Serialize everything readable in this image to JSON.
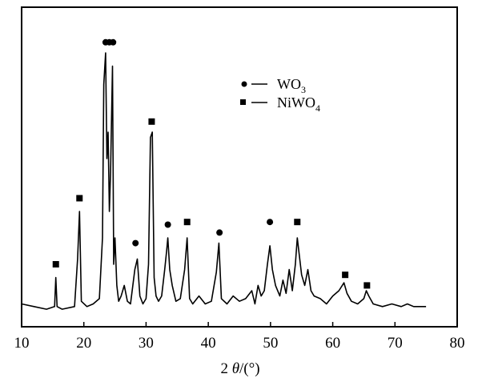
{
  "chart_data": {
    "type": "line",
    "title": "",
    "xlabel_prefix": "2 ",
    "xlabel_theta": "θ",
    "xlabel_suffix": "/(°)",
    "ylabel": "",
    "xlim": [
      10,
      80
    ],
    "xticks": [
      "10",
      "20",
      "30",
      "40",
      "50",
      "60",
      "70",
      "80"
    ],
    "grid": false,
    "legend_position": "top-right",
    "legend": [
      {
        "marker": "circle",
        "label_main": "WO",
        "label_sub": "3"
      },
      {
        "marker": "square",
        "label_main": "NiWO",
        "label_sub": "4"
      }
    ],
    "series": [
      {
        "name": "XRD pattern",
        "x": [
          10.0,
          12.0,
          14.0,
          15.3,
          15.5,
          15.7,
          16.5,
          18.5,
          19.0,
          19.3,
          19.6,
          20.5,
          21.5,
          22.5,
          23.0,
          23.2,
          23.5,
          23.7,
          23.9,
          24.1,
          24.3,
          24.6,
          24.8,
          25.0,
          25.3,
          25.6,
          26.0,
          26.5,
          27.0,
          27.5,
          28.2,
          28.6,
          29.0,
          29.5,
          30.0,
          30.4,
          30.7,
          31.0,
          31.3,
          31.6,
          32.0,
          32.5,
          33.0,
          33.3,
          33.5,
          33.8,
          34.2,
          34.8,
          35.5,
          36.2,
          36.6,
          37.0,
          37.5,
          38.5,
          39.5,
          40.5,
          41.3,
          41.7,
          42.1,
          43.0,
          44.0,
          45.0,
          46.0,
          47.0,
          47.5,
          48.0,
          48.5,
          49.0,
          49.5,
          49.9,
          50.3,
          50.8,
          51.5,
          52.0,
          52.5,
          53.0,
          53.5,
          54.0,
          54.3,
          54.6,
          55.0,
          55.5,
          56.0,
          56.5,
          57.0,
          58.0,
          59.0,
          60.0,
          61.0,
          61.8,
          62.3,
          63.0,
          64.0,
          65.0,
          65.4,
          65.8,
          66.5,
          68.0,
          69.5,
          71.0,
          72.0,
          73.0,
          74.0,
          75.0
        ],
        "y": [
          5,
          4,
          3,
          4,
          15,
          4,
          3,
          4,
          22,
          40,
          6,
          4,
          5,
          7,
          30,
          88,
          100,
          60,
          70,
          40,
          55,
          95,
          20,
          30,
          12,
          6,
          8,
          12,
          6,
          5,
          18,
          22,
          8,
          5,
          7,
          20,
          68,
          70,
          15,
          8,
          6,
          8,
          18,
          25,
          30,
          18,
          12,
          6,
          7,
          18,
          30,
          7,
          5,
          8,
          5,
          6,
          17,
          28,
          7,
          5,
          8,
          6,
          7,
          10,
          5,
          12,
          8,
          10,
          20,
          27,
          18,
          12,
          8,
          14,
          9,
          18,
          10,
          20,
          30,
          24,
          16,
          12,
          18,
          10,
          8,
          7,
          5,
          8,
          10,
          13,
          9,
          6,
          5,
          7,
          10,
          8,
          5,
          4,
          5,
          4,
          5,
          4,
          4,
          4
        ]
      }
    ],
    "peak_markers": [
      {
        "type": "square",
        "x": 15.5,
        "y": 20
      },
      {
        "type": "square",
        "x": 19.3,
        "y": 45
      },
      {
        "type": "circle",
        "x": 23.5,
        "y": 104
      },
      {
        "type": "circle",
        "x": 24.1,
        "y": 104
      },
      {
        "type": "circle",
        "x": 24.7,
        "y": 104
      },
      {
        "type": "square",
        "x": 30.9,
        "y": 74
      },
      {
        "type": "circle",
        "x": 28.3,
        "y": 28
      },
      {
        "type": "circle",
        "x": 33.5,
        "y": 35
      },
      {
        "type": "square",
        "x": 36.6,
        "y": 36
      },
      {
        "type": "circle",
        "x": 41.8,
        "y": 32
      },
      {
        "type": "circle",
        "x": 49.9,
        "y": 36
      },
      {
        "type": "square",
        "x": 54.3,
        "y": 36
      },
      {
        "type": "square",
        "x": 62.0,
        "y": 16
      },
      {
        "type": "square",
        "x": 65.5,
        "y": 12
      }
    ]
  }
}
